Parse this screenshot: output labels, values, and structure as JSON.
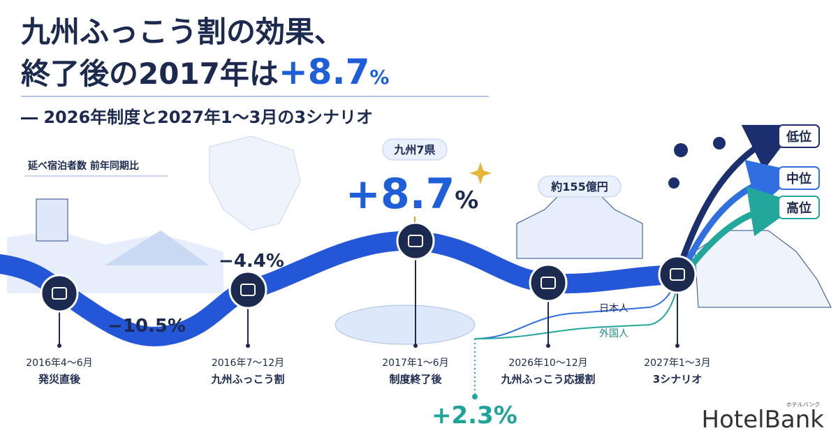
{
  "header": {
    "title_line1": "九州ふっこう割の効果、",
    "title_line2_prefix": "終了後の2017年は",
    "title_line2_highlight": "+8.7",
    "title_line2_unit": "%",
    "subtitle": "― 2026年制度と2027年1〜3月の3シナリオ"
  },
  "metric_label": "延べ宿泊者数 前年同期比",
  "milestones": [
    {
      "date": "2016年4〜6月",
      "label": "発災直後",
      "value": "−10.5%"
    },
    {
      "date": "2016年7〜12月",
      "label": "九州ふっこう割",
      "value": "−4.4%"
    },
    {
      "date": "2017年1〜6月",
      "label": "制度終了後",
      "badge": "九州7県",
      "value_main": "+8.7",
      "value_unit": "%"
    },
    {
      "date": "2026年10〜12月",
      "label": "九州ふっこう応援割",
      "badge": "約155億円"
    },
    {
      "date": "2027年1〜3月",
      "label": "3シナリオ"
    }
  ],
  "breakdown": {
    "domestic": "日本人",
    "foreign": "外国人",
    "value": "+2.3%"
  },
  "scenarios": [
    "低位",
    "中位",
    "高位"
  ],
  "logo": {
    "name": "HotelBank",
    "kana": "ホテルバンク"
  }
}
